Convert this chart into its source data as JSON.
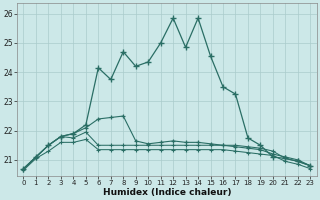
{
  "xlabel": "Humidex (Indice chaleur)",
  "bg_color": "#cce8e8",
  "line_color": "#2a6e65",
  "grid_color": "#aacccc",
  "xlim_min": -0.5,
  "xlim_max": 23.5,
  "ylim_min": 20.45,
  "ylim_max": 26.35,
  "yticks": [
    21,
    22,
    23,
    24,
    25,
    26
  ],
  "xtick_labels": [
    "0",
    "1",
    "2",
    "3",
    "4",
    "5",
    "6",
    "7",
    "8",
    "9",
    "10",
    "11",
    "12",
    "13",
    "14",
    "15",
    "16",
    "17",
    "18",
    "19",
    "20",
    "21",
    "22",
    "23"
  ],
  "series_spiky": [
    20.7,
    21.1,
    21.5,
    21.8,
    21.9,
    22.2,
    24.15,
    23.75,
    24.7,
    24.2,
    24.35,
    25.0,
    25.85,
    24.85,
    25.85,
    24.55,
    23.5,
    23.25,
    21.75,
    21.5,
    21.1,
    21.05,
    20.95,
    20.8
  ],
  "series_mid": [
    20.7,
    21.1,
    21.5,
    21.8,
    21.9,
    22.1,
    22.4,
    22.45,
    22.5,
    21.65,
    21.55,
    21.6,
    21.65,
    21.6,
    21.6,
    21.55,
    21.5,
    21.45,
    21.4,
    21.35,
    21.2,
    21.1,
    21.0,
    20.8
  ],
  "series_flat1": [
    20.7,
    21.1,
    21.5,
    21.8,
    21.75,
    21.95,
    21.5,
    21.5,
    21.5,
    21.5,
    21.5,
    21.5,
    21.5,
    21.5,
    21.5,
    21.5,
    21.5,
    21.5,
    21.45,
    21.4,
    21.3,
    21.05,
    20.95,
    20.8
  ],
  "series_bottom": [
    20.65,
    21.05,
    21.3,
    21.6,
    21.6,
    21.7,
    21.35,
    21.35,
    21.35,
    21.35,
    21.35,
    21.35,
    21.35,
    21.35,
    21.35,
    21.35,
    21.35,
    21.3,
    21.25,
    21.2,
    21.15,
    20.95,
    20.85,
    20.7
  ]
}
